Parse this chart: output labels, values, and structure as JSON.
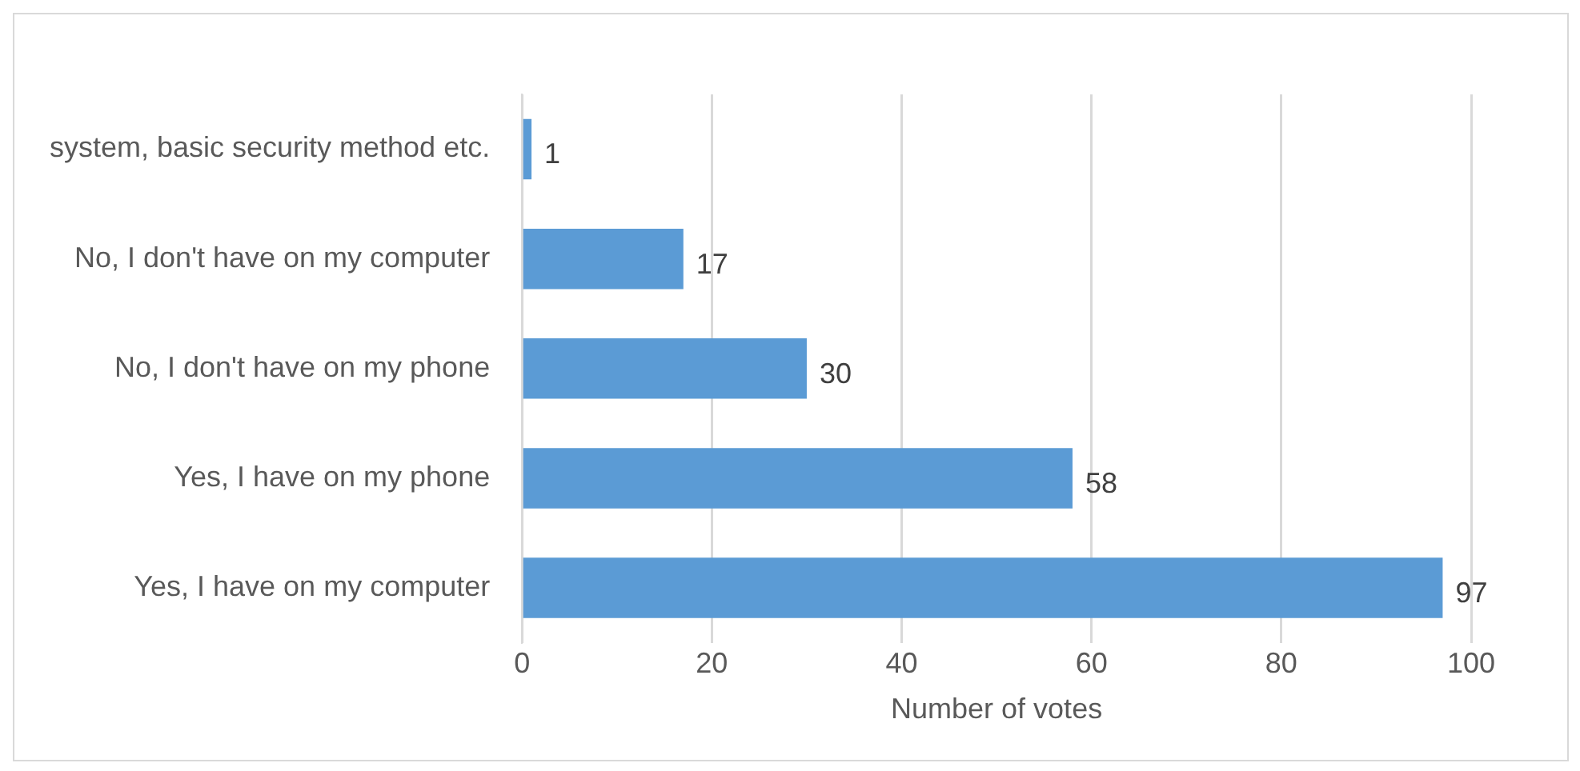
{
  "chart_data": {
    "type": "bar",
    "orientation": "horizontal",
    "xlabel": "Number of votes",
    "categories": [
      "system, basic security method etc.",
      "No, I don't have on my computer",
      "No, I don't have on my phone",
      "Yes, I have on my phone",
      "Yes, I have on my computer"
    ],
    "values": [
      1,
      17,
      30,
      58,
      97
    ],
    "color": "#5b9bd5",
    "xlim": [
      0,
      100
    ],
    "xticks": [
      0,
      20,
      40,
      60,
      80,
      100
    ],
    "grid": "x",
    "data_labels": true,
    "legend": false
  }
}
